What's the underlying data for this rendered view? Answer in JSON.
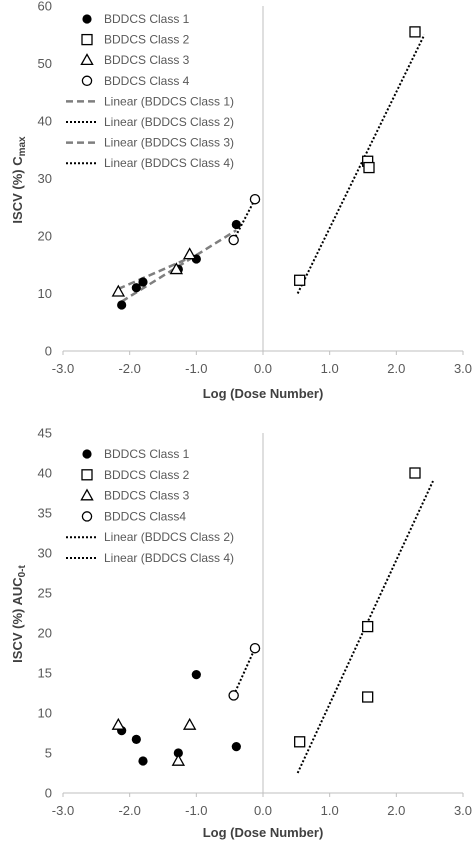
{
  "chart_data": [
    {
      "type": "scatter",
      "xlabel": "Log (Dose Number)",
      "ylabel_main": "ISCV (%) C",
      "ylabel_sub": "max",
      "xlim": [
        -3.0,
        3.0
      ],
      "ylim": [
        0,
        60
      ],
      "xticks": [
        "-3.0",
        "-2.0",
        "-1.0",
        "0.0",
        "1.0",
        "2.0",
        "3.0"
      ],
      "yticks": [
        "0",
        "10",
        "20",
        "30",
        "40",
        "50",
        "60"
      ],
      "grid": false,
      "legend_position": "top-left",
      "series": [
        {
          "name": "BDDCS Class 1",
          "marker": "filled-circle",
          "points": [
            [
              -2.12,
              8
            ],
            [
              -1.9,
              11
            ],
            [
              -1.8,
              12
            ],
            [
              -1.27,
              14.2
            ],
            [
              -1.0,
              16
            ],
            [
              -0.4,
              22
            ]
          ]
        },
        {
          "name": "BDDCS Class 2",
          "marker": "open-square",
          "points": [
            [
              0.55,
              12.3
            ],
            [
              1.57,
              33
            ],
            [
              1.59,
              31.9
            ],
            [
              2.28,
              55.5
            ]
          ]
        },
        {
          "name": "BDDCS Class 3",
          "marker": "open-triangle",
          "points": [
            [
              -2.17,
              10.3
            ],
            [
              -1.3,
              14.2
            ],
            [
              -1.1,
              16.8
            ]
          ]
        },
        {
          "name": "BDDCS Class 4",
          "marker": "open-circle",
          "points": [
            [
              -0.44,
              19.3
            ],
            [
              -0.12,
              26.4
            ]
          ]
        }
      ],
      "trendlines": [
        {
          "name": "Linear (BDDCS Class 1)",
          "style": "dashed",
          "x": [
            -2.12,
            -0.4
          ],
          "y": [
            8.6,
            21.0
          ]
        },
        {
          "name": "Linear (BDDCS Class 2)",
          "style": "dotted",
          "x": [
            0.52,
            2.42
          ],
          "y": [
            10.0,
            55.0
          ]
        },
        {
          "name": "Linear (BDDCS Class 3)",
          "style": "dashed",
          "x": [
            -2.17,
            -1.1
          ],
          "y": [
            10.8,
            16.2
          ]
        },
        {
          "name": "Linear (BDDCS Class 4)",
          "style": "dotted",
          "x": [
            -0.44,
            -0.12
          ],
          "y": [
            19.3,
            26.4
          ]
        }
      ]
    },
    {
      "type": "scatter",
      "xlabel": "Log (Dose Number)",
      "ylabel_main": "ISCV (%) AUC",
      "ylabel_sub": "0-t",
      "xlim": [
        -3.0,
        3.0
      ],
      "ylim": [
        0,
        45
      ],
      "xticks": [
        "-3.0",
        "-2.0",
        "-1.0",
        "0.0",
        "1.0",
        "2.0",
        "3.0"
      ],
      "yticks": [
        "0",
        "5",
        "10",
        "15",
        "20",
        "25",
        "30",
        "35",
        "40",
        "45"
      ],
      "grid": false,
      "legend_position": "top-left",
      "series": [
        {
          "name": "BDDCS Class 1",
          "marker": "filled-circle",
          "points": [
            [
              -2.12,
              7.8
            ],
            [
              -1.9,
              6.7
            ],
            [
              -1.8,
              4.0
            ],
            [
              -1.27,
              5.0
            ],
            [
              -1.0,
              14.8
            ],
            [
              -0.4,
              5.8
            ]
          ]
        },
        {
          "name": "BDDCS Class 2",
          "marker": "open-square",
          "points": [
            [
              0.55,
              6.4
            ],
            [
              1.57,
              20.8
            ],
            [
              1.57,
              12.0
            ],
            [
              2.28,
              40.0
            ]
          ]
        },
        {
          "name": "BDDCS Class 3",
          "marker": "open-triangle",
          "points": [
            [
              -2.17,
              8.5
            ],
            [
              -1.27,
              4.0
            ],
            [
              -1.1,
              8.5
            ]
          ]
        },
        {
          "name": "BDDCS Class4",
          "marker": "open-circle",
          "points": [
            [
              -0.44,
              12.2
            ],
            [
              -0.12,
              18.1
            ]
          ]
        }
      ],
      "trendlines": [
        {
          "name": "Linear (BDDCS Class 2)",
          "style": "dotted",
          "x": [
            0.52,
            2.55
          ],
          "y": [
            2.5,
            39.0
          ]
        },
        {
          "name": "Linear (BDDCS Class 4)",
          "style": "dotted",
          "x": [
            -0.44,
            -0.12
          ],
          "y": [
            12.2,
            18.1
          ]
        }
      ]
    }
  ]
}
